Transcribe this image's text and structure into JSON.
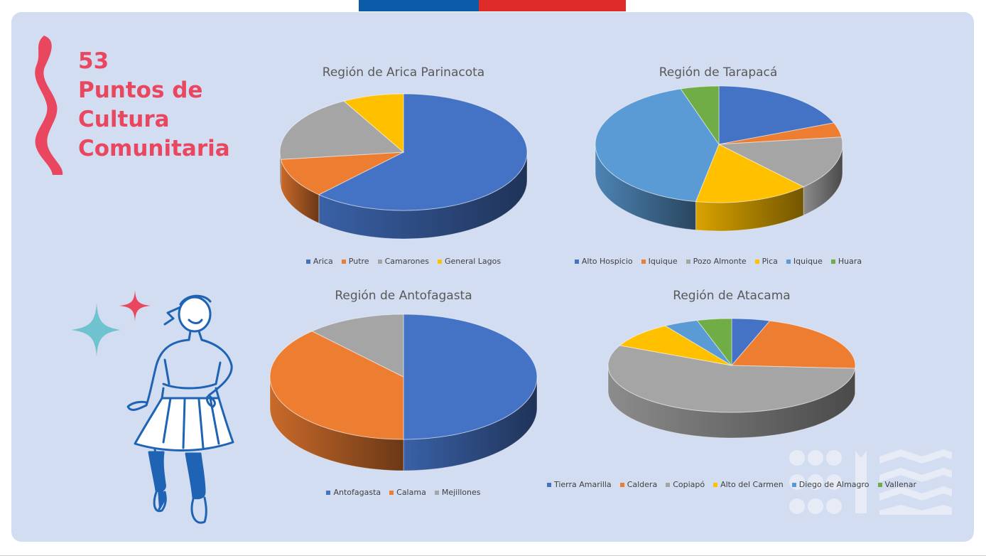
{
  "headline": {
    "line1": "53",
    "line2": "Puntos de",
    "line3": "Cultura",
    "line4": "Comunitaria"
  },
  "colors": {
    "accent": "#e8475f",
    "panel": "#d3ddf1",
    "flag_blue": "#0b5ba8",
    "flag_red": "#e02b2b",
    "illustration": "#1e63b4"
  },
  "icons": [
    "ribbon-decoration-icon",
    "sparkle-star-icon",
    "dancer-illustration-icon",
    "brand-pattern-icon"
  ],
  "chart_data": [
    {
      "type": "pie",
      "title": "Región de Arica Parinacota",
      "categories": [
        "Arica",
        "Putre",
        "Camarones",
        "General Lagos"
      ],
      "values": [
        62,
        11,
        19,
        8
      ],
      "colors": [
        "#4472c4",
        "#ed7d31",
        "#a5a5a5",
        "#ffc000"
      ],
      "legend": "bottom"
    },
    {
      "type": "pie",
      "title": "Región de Tarapacá",
      "categories": [
        "Alto Hospicio",
        "Iquique",
        "Pozo Almonte",
        "Pica",
        "Iquique",
        "Huara"
      ],
      "values": [
        19,
        4,
        15,
        15,
        42,
        5
      ],
      "colors": [
        "#4472c4",
        "#ed7d31",
        "#a5a5a5",
        "#ffc000",
        "#5b9bd5",
        "#70ad47"
      ],
      "legend": "bottom"
    },
    {
      "type": "pie",
      "title": "Región de Antofagasta",
      "categories": [
        "Antofagasta",
        "Calama",
        "Mejillones"
      ],
      "values": [
        50,
        38,
        12
      ],
      "colors": [
        "#4472c4",
        "#ed7d31",
        "#a5a5a5"
      ],
      "legend": "bottom"
    },
    {
      "type": "pie",
      "title": "Región de Atacama",
      "categories": [
        "Tierra Amarilla",
        "Caldera",
        "Copiapó",
        "Alto del Carmen",
        "Diego de Almagro",
        "Vallenar"
      ],
      "values": [
        5,
        21,
        56,
        9,
        4.5,
        4.5
      ],
      "colors": [
        "#4472c4",
        "#ed7d31",
        "#a5a5a5",
        "#ffc000",
        "#5b9bd5",
        "#70ad47"
      ],
      "legend": "bottom"
    }
  ]
}
